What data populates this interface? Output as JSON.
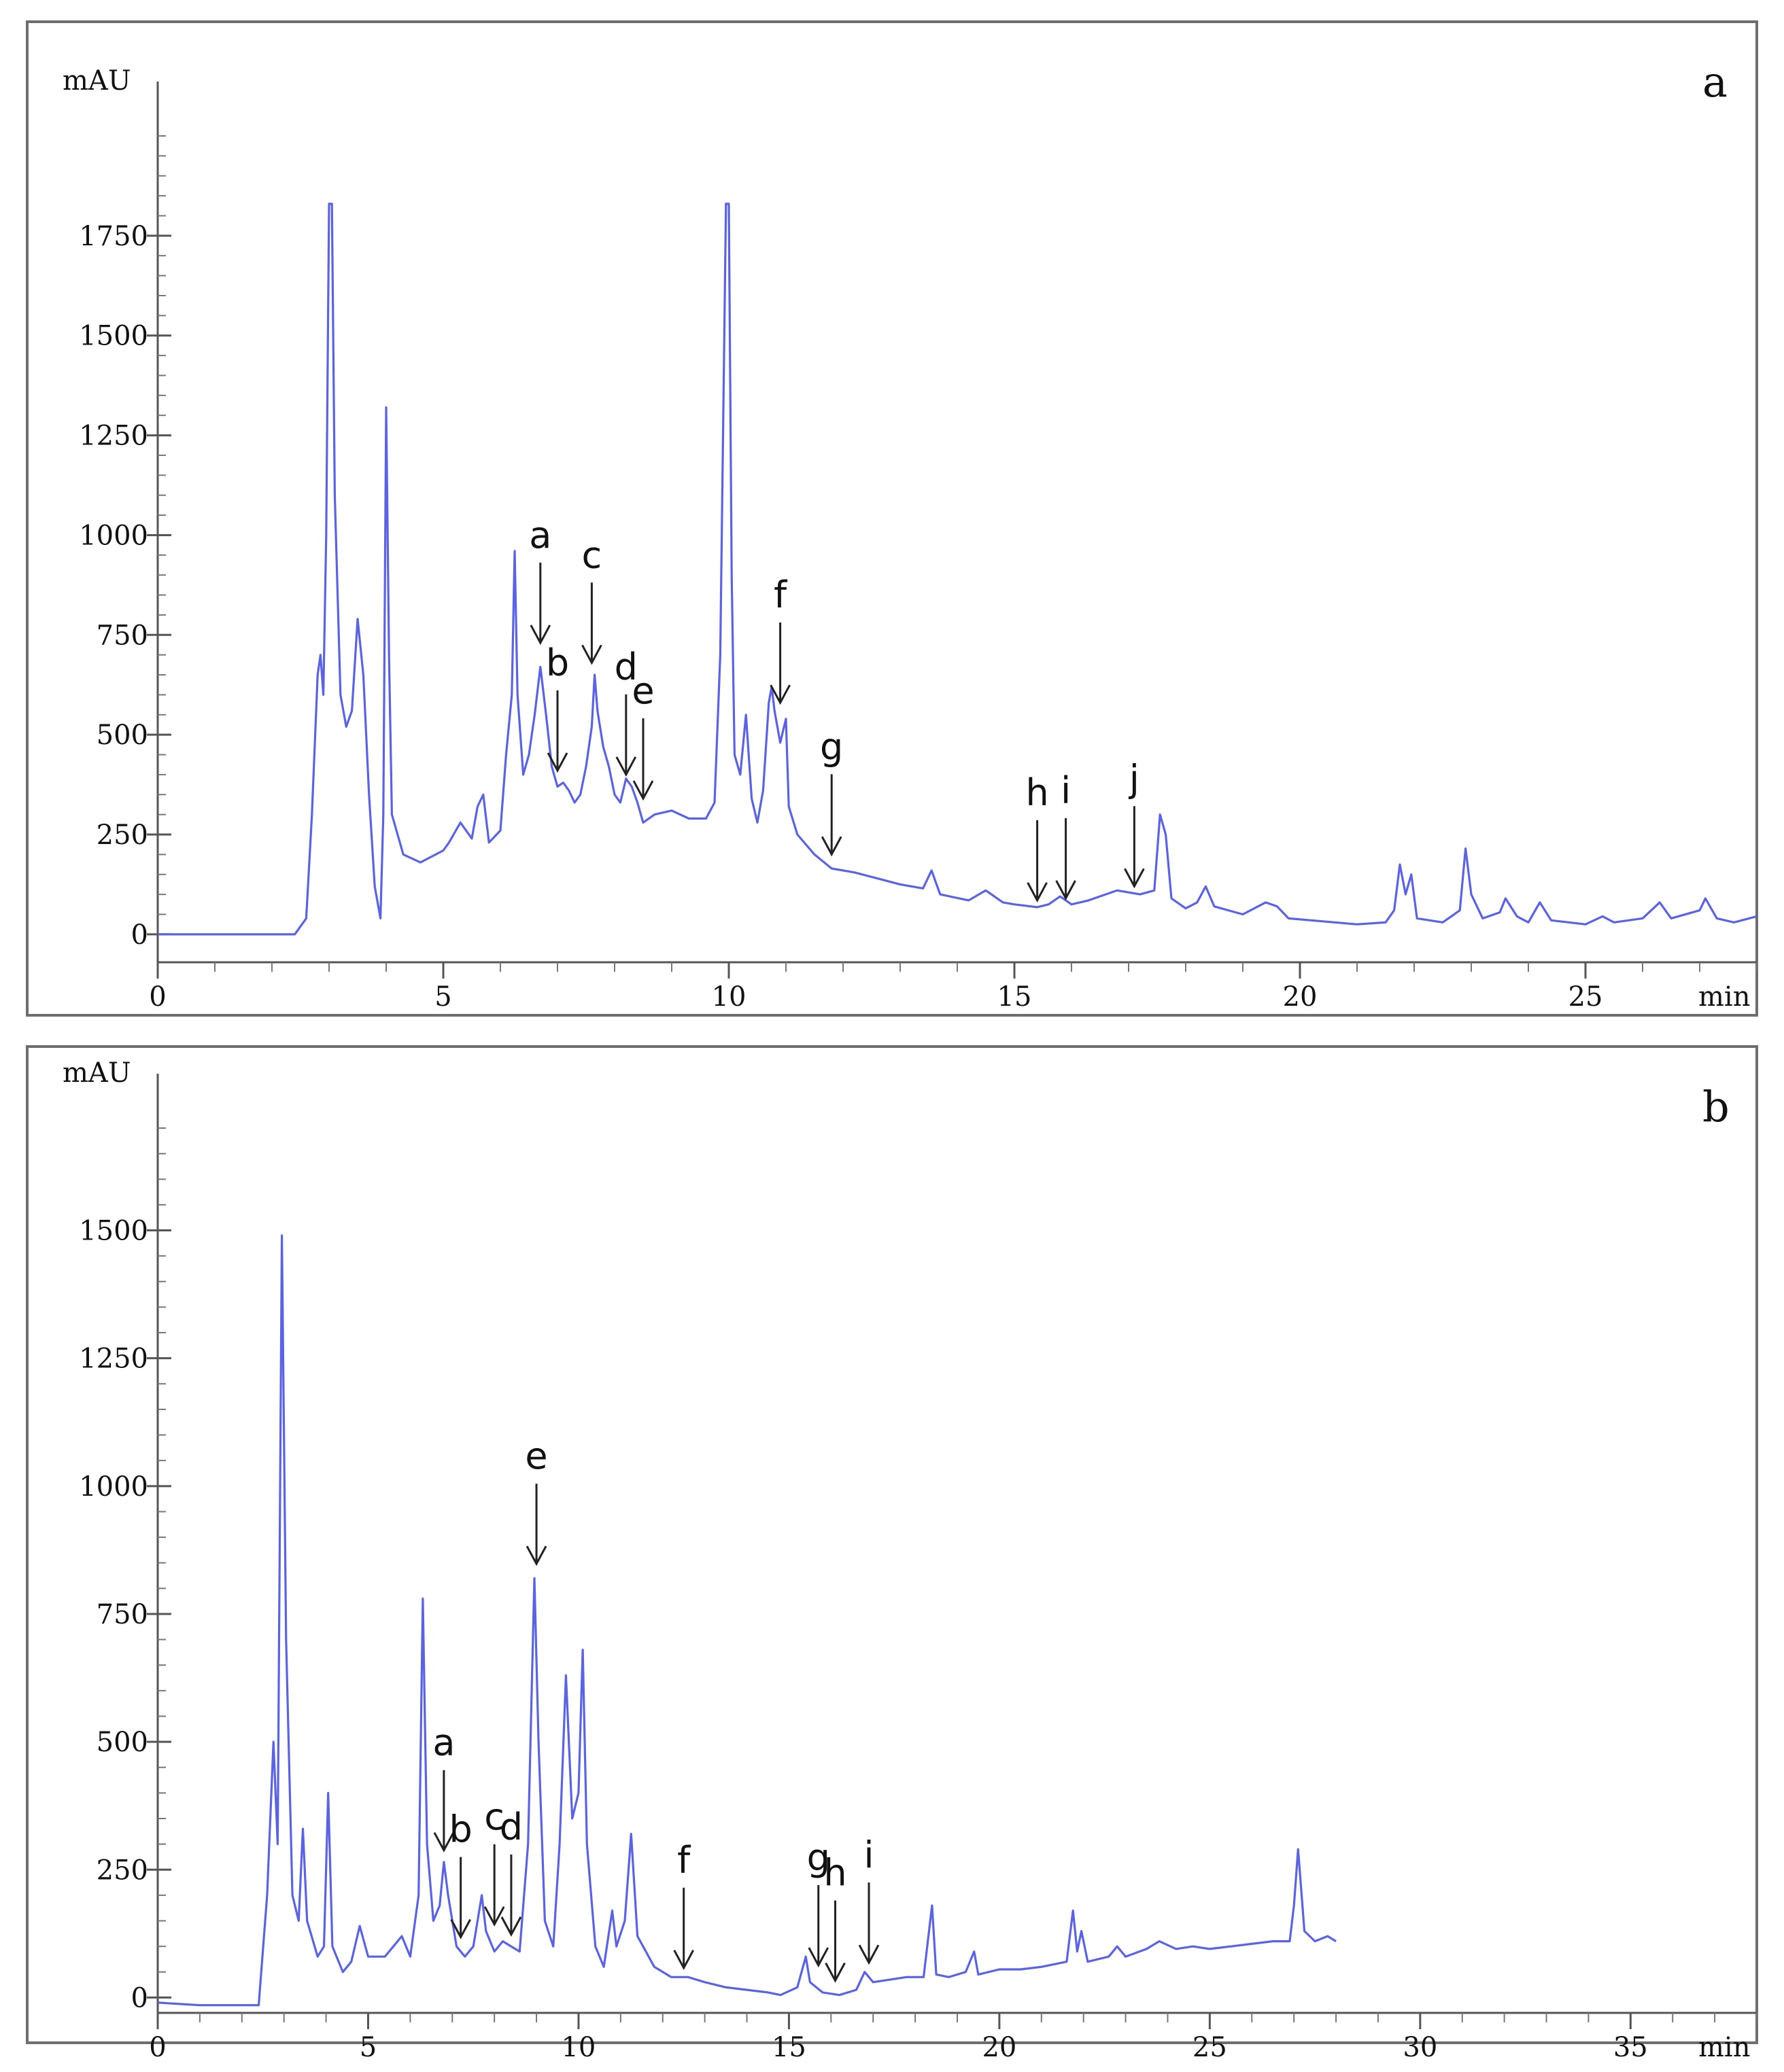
{
  "chart_data": [
    {
      "panel": "a",
      "type": "line",
      "ylabel": "mAU",
      "xlabel": "min",
      "xlim": [
        0,
        28
      ],
      "ylim": [
        -70,
        2000
      ],
      "xticks": [
        0,
        5,
        10,
        15,
        20,
        25
      ],
      "yticks": [
        0,
        250,
        500,
        750,
        1000,
        1250,
        1500,
        1750
      ],
      "trace": [
        [
          0,
          0
        ],
        [
          2.4,
          0
        ],
        [
          2.6,
          40
        ],
        [
          2.7,
          300
        ],
        [
          2.8,
          650
        ],
        [
          2.85,
          700
        ],
        [
          2.9,
          600
        ],
        [
          2.95,
          1000
        ],
        [
          3.0,
          1830
        ],
        [
          3.05,
          1830
        ],
        [
          3.1,
          1100
        ],
        [
          3.2,
          600
        ],
        [
          3.3,
          520
        ],
        [
          3.4,
          560
        ],
        [
          3.5,
          790
        ],
        [
          3.6,
          650
        ],
        [
          3.7,
          350
        ],
        [
          3.8,
          120
        ],
        [
          3.9,
          40
        ],
        [
          3.95,
          300
        ],
        [
          4.0,
          1320
        ],
        [
          4.05,
          700
        ],
        [
          4.1,
          300
        ],
        [
          4.3,
          200
        ],
        [
          4.6,
          180
        ],
        [
          5.0,
          210
        ],
        [
          5.1,
          230
        ],
        [
          5.3,
          280
        ],
        [
          5.5,
          240
        ],
        [
          5.6,
          320
        ],
        [
          5.7,
          350
        ],
        [
          5.8,
          230
        ],
        [
          6.0,
          260
        ],
        [
          6.1,
          450
        ],
        [
          6.2,
          600
        ],
        [
          6.25,
          960
        ],
        [
          6.3,
          600
        ],
        [
          6.4,
          400
        ],
        [
          6.5,
          450
        ],
        [
          6.6,
          550
        ],
        [
          6.7,
          670
        ],
        [
          6.8,
          550
        ],
        [
          6.9,
          420
        ],
        [
          7.0,
          370
        ],
        [
          7.1,
          380
        ],
        [
          7.2,
          360
        ],
        [
          7.3,
          330
        ],
        [
          7.4,
          350
        ],
        [
          7.5,
          420
        ],
        [
          7.6,
          520
        ],
        [
          7.65,
          650
        ],
        [
          7.7,
          560
        ],
        [
          7.8,
          470
        ],
        [
          7.9,
          420
        ],
        [
          8.0,
          350
        ],
        [
          8.1,
          330
        ],
        [
          8.2,
          390
        ],
        [
          8.3,
          370
        ],
        [
          8.4,
          330
        ],
        [
          8.5,
          280
        ],
        [
          8.7,
          300
        ],
        [
          9.0,
          310
        ],
        [
          9.3,
          290
        ],
        [
          9.6,
          290
        ],
        [
          9.75,
          330
        ],
        [
          9.85,
          700
        ],
        [
          9.95,
          1830
        ],
        [
          10.0,
          1830
        ],
        [
          10.05,
          900
        ],
        [
          10.1,
          450
        ],
        [
          10.2,
          400
        ],
        [
          10.3,
          550
        ],
        [
          10.4,
          340
        ],
        [
          10.5,
          280
        ],
        [
          10.6,
          360
        ],
        [
          10.7,
          580
        ],
        [
          10.75,
          620
        ],
        [
          10.8,
          560
        ],
        [
          10.9,
          480
        ],
        [
          11.0,
          540
        ],
        [
          11.05,
          320
        ],
        [
          11.2,
          250
        ],
        [
          11.5,
          200
        ],
        [
          11.8,
          165
        ],
        [
          12.2,
          155
        ],
        [
          12.6,
          140
        ],
        [
          13.0,
          125
        ],
        [
          13.4,
          115
        ],
        [
          13.55,
          160
        ],
        [
          13.7,
          100
        ],
        [
          14.2,
          85
        ],
        [
          14.5,
          110
        ],
        [
          14.8,
          80
        ],
        [
          15.0,
          75
        ],
        [
          15.4,
          68
        ],
        [
          15.6,
          75
        ],
        [
          15.8,
          95
        ],
        [
          16.0,
          75
        ],
        [
          16.3,
          85
        ],
        [
          16.8,
          110
        ],
        [
          17.2,
          100
        ],
        [
          17.45,
          110
        ],
        [
          17.55,
          300
        ],
        [
          17.65,
          250
        ],
        [
          17.75,
          90
        ],
        [
          18.0,
          65
        ],
        [
          18.2,
          80
        ],
        [
          18.35,
          120
        ],
        [
          18.5,
          70
        ],
        [
          19.0,
          50
        ],
        [
          19.4,
          80
        ],
        [
          19.6,
          70
        ],
        [
          19.8,
          40
        ],
        [
          20.2,
          35
        ],
        [
          21.0,
          25
        ],
        [
          21.5,
          30
        ],
        [
          21.65,
          60
        ],
        [
          21.75,
          175
        ],
        [
          21.85,
          100
        ],
        [
          21.95,
          150
        ],
        [
          22.05,
          40
        ],
        [
          22.5,
          30
        ],
        [
          22.8,
          60
        ],
        [
          22.9,
          215
        ],
        [
          23.0,
          100
        ],
        [
          23.2,
          40
        ],
        [
          23.5,
          55
        ],
        [
          23.6,
          90
        ],
        [
          23.8,
          45
        ],
        [
          24.0,
          30
        ],
        [
          24.2,
          80
        ],
        [
          24.4,
          35
        ],
        [
          25.0,
          25
        ],
        [
          25.3,
          45
        ],
        [
          25.5,
          30
        ],
        [
          26.0,
          40
        ],
        [
          26.3,
          80
        ],
        [
          26.5,
          40
        ],
        [
          27.0,
          60
        ],
        [
          27.1,
          90
        ],
        [
          27.3,
          40
        ],
        [
          27.6,
          30
        ],
        [
          28.0,
          45
        ]
      ],
      "annotations": [
        {
          "label": "a",
          "x": 6.7,
          "y": 720
        },
        {
          "label": "b",
          "x": 7.0,
          "y": 400
        },
        {
          "label": "c",
          "x": 7.6,
          "y": 670
        },
        {
          "label": "d",
          "x": 8.2,
          "y": 390
        },
        {
          "label": "e",
          "x": 8.5,
          "y": 330
        },
        {
          "label": "f",
          "x": 10.9,
          "y": 570
        },
        {
          "label": "g",
          "x": 11.8,
          "y": 190
        },
        {
          "label": "h",
          "x": 15.4,
          "y": 75
        },
        {
          "label": "i",
          "x": 15.9,
          "y": 80
        },
        {
          "label": "j",
          "x": 17.1,
          "y": 110
        }
      ]
    },
    {
      "panel": "b",
      "type": "line",
      "ylabel": "mAU",
      "xlabel": "min",
      "xlim": [
        0,
        38
      ],
      "ylim": [
        -30,
        1700
      ],
      "xticks": [
        0,
        5,
        10,
        15,
        20,
        25,
        30,
        35
      ],
      "yticks": [
        0,
        250,
        500,
        750,
        1000,
        1250,
        1500
      ],
      "trace": [
        [
          0,
          -10
        ],
        [
          1.0,
          -15
        ],
        [
          1.8,
          -15
        ],
        [
          2.4,
          -15
        ],
        [
          2.6,
          200
        ],
        [
          2.75,
          500
        ],
        [
          2.85,
          300
        ],
        [
          2.95,
          1490
        ],
        [
          3.05,
          700
        ],
        [
          3.2,
          200
        ],
        [
          3.35,
          150
        ],
        [
          3.45,
          330
        ],
        [
          3.55,
          150
        ],
        [
          3.8,
          80
        ],
        [
          3.95,
          100
        ],
        [
          4.05,
          400
        ],
        [
          4.15,
          100
        ],
        [
          4.4,
          50
        ],
        [
          4.6,
          70
        ],
        [
          4.8,
          140
        ],
        [
          5.0,
          80
        ],
        [
          5.4,
          80
        ],
        [
          5.6,
          100
        ],
        [
          5.8,
          120
        ],
        [
          6.0,
          80
        ],
        [
          6.2,
          200
        ],
        [
          6.3,
          780
        ],
        [
          6.4,
          300
        ],
        [
          6.55,
          150
        ],
        [
          6.7,
          180
        ],
        [
          6.8,
          265
        ],
        [
          6.9,
          200
        ],
        [
          7.1,
          100
        ],
        [
          7.3,
          80
        ],
        [
          7.5,
          100
        ],
        [
          7.7,
          200
        ],
        [
          7.8,
          130
        ],
        [
          8.0,
          90
        ],
        [
          8.2,
          110
        ],
        [
          8.4,
          100
        ],
        [
          8.6,
          90
        ],
        [
          8.8,
          300
        ],
        [
          8.95,
          820
        ],
        [
          9.05,
          500
        ],
        [
          9.2,
          150
        ],
        [
          9.4,
          100
        ],
        [
          9.55,
          300
        ],
        [
          9.7,
          630
        ],
        [
          9.85,
          350
        ],
        [
          10.0,
          400
        ],
        [
          10.1,
          680
        ],
        [
          10.2,
          300
        ],
        [
          10.4,
          100
        ],
        [
          10.6,
          60
        ],
        [
          10.8,
          170
        ],
        [
          10.9,
          100
        ],
        [
          11.1,
          150
        ],
        [
          11.25,
          320
        ],
        [
          11.4,
          120
        ],
        [
          11.8,
          60
        ],
        [
          12.2,
          40
        ],
        [
          12.6,
          40
        ],
        [
          13.0,
          30
        ],
        [
          13.5,
          20
        ],
        [
          14.0,
          15
        ],
        [
          14.5,
          10
        ],
        [
          14.8,
          5
        ],
        [
          15.2,
          20
        ],
        [
          15.4,
          80
        ],
        [
          15.5,
          30
        ],
        [
          15.8,
          10
        ],
        [
          16.2,
          5
        ],
        [
          16.6,
          15
        ],
        [
          16.8,
          50
        ],
        [
          17.0,
          30
        ],
        [
          17.4,
          35
        ],
        [
          17.8,
          40
        ],
        [
          18.2,
          40
        ],
        [
          18.4,
          180
        ],
        [
          18.5,
          45
        ],
        [
          18.8,
          40
        ],
        [
          19.2,
          50
        ],
        [
          19.4,
          90
        ],
        [
          19.5,
          45
        ],
        [
          20.0,
          55
        ],
        [
          20.5,
          55
        ],
        [
          21.0,
          60
        ],
        [
          21.6,
          70
        ],
        [
          21.75,
          170
        ],
        [
          21.85,
          90
        ],
        [
          21.95,
          130
        ],
        [
          22.1,
          70
        ],
        [
          22.6,
          80
        ],
        [
          22.8,
          100
        ],
        [
          23.0,
          80
        ],
        [
          23.5,
          95
        ],
        [
          23.8,
          110
        ],
        [
          24.2,
          95
        ],
        [
          24.6,
          100
        ],
        [
          25.0,
          95
        ],
        [
          25.5,
          100
        ],
        [
          26.0,
          105
        ],
        [
          26.5,
          110
        ],
        [
          26.9,
          110
        ],
        [
          27.0,
          180
        ],
        [
          27.1,
          290
        ],
        [
          27.25,
          130
        ],
        [
          27.5,
          110
        ],
        [
          27.8,
          120
        ],
        [
          28.0,
          110
        ]
      ],
      "annotations": [
        {
          "label": "a",
          "x": 6.8,
          "y": 280
        },
        {
          "label": "b",
          "x": 7.2,
          "y": 110
        },
        {
          "label": "c",
          "x": 8.0,
          "y": 135
        },
        {
          "label": "d",
          "x": 8.4,
          "y": 115
        },
        {
          "label": "e",
          "x": 9.0,
          "y": 840
        },
        {
          "label": "f",
          "x": 12.5,
          "y": 50
        },
        {
          "label": "g",
          "x": 15.7,
          "y": 55
        },
        {
          "label": "h",
          "x": 16.1,
          "y": 25
        },
        {
          "label": "i",
          "x": 16.9,
          "y": 60
        }
      ]
    }
  ]
}
